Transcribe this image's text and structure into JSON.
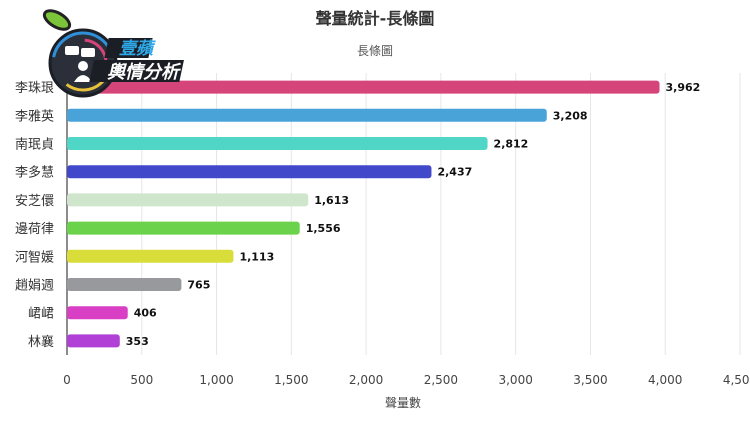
{
  "logo": {
    "line1": "壹蘋",
    "line2": "輿情分析"
  },
  "chart_data": {
    "type": "bar",
    "orientation": "horizontal",
    "title": "聲量統計-長條圖",
    "subtitle": "長條圖",
    "xlabel": "聲量數",
    "ylabel": "",
    "xlim": [
      0,
      4500
    ],
    "xticks": [
      0,
      500,
      1000,
      1500,
      2000,
      2500,
      3000,
      3500,
      4000,
      4500
    ],
    "xtick_labels": [
      "0",
      "500",
      "1,000",
      "1,500",
      "2,000",
      "2,500",
      "3,000",
      "3,500",
      "4,000",
      "4,500"
    ],
    "grid": true,
    "categories": [
      "李珠珢",
      "李雅英",
      "南珉貞",
      "李多慧",
      "安芝儇",
      "邊荷律",
      "河智媛",
      "趙娟週",
      "峮峮",
      "林襄"
    ],
    "values": [
      3962,
      3208,
      2812,
      2437,
      1613,
      1556,
      1113,
      765,
      406,
      353
    ],
    "data_labels": [
      "3,962",
      "3,208",
      "2,812",
      "2,437",
      "1,613",
      "1,556",
      "1,113",
      "765",
      "406",
      "353"
    ],
    "colors": [
      "#d6457a",
      "#4aa3d8",
      "#4fd6c6",
      "#4148c9",
      "#cfe6cc",
      "#6bd24b",
      "#d9dd3a",
      "#97999c",
      "#d93fc4",
      "#b040d6"
    ]
  }
}
